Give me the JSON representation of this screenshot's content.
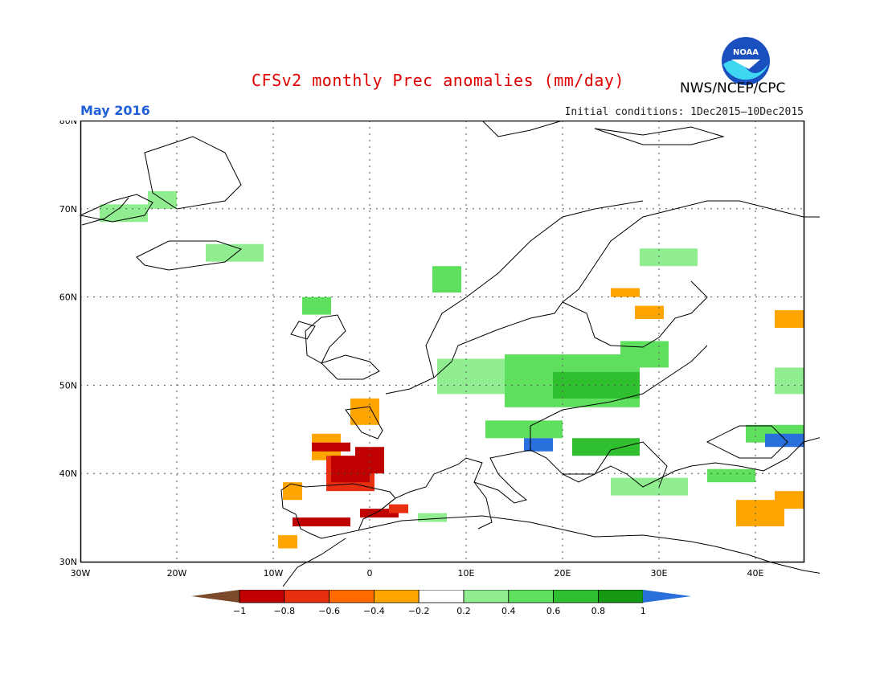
{
  "header": {
    "title": "CFSv2 monthly Prec anomalies (mm/day)",
    "month": "May 2016",
    "initial_conditions": "Initial conditions: 1Dec2015—10Dec2015",
    "agency": "NWS/NCEP/CPC",
    "logo_text": "NOAA"
  },
  "map": {
    "region": "Europe",
    "lon_range": [
      -30,
      45
    ],
    "lat_range": [
      30,
      80
    ],
    "lat_labels": [
      "80N",
      "70N",
      "60N",
      "50N",
      "40N",
      "30N"
    ],
    "lon_labels": [
      "30W",
      "20W",
      "10W",
      "0",
      "10E",
      "20E",
      "30E",
      "40E"
    ],
    "gridlines": true,
    "colors": {
      "lt_neg1": "#7a4a2a",
      "n08": "#c00000",
      "n06": "#e83010",
      "n04": "#ff6a00",
      "n02": "#ffa500",
      "p02": "#90ee90",
      "p04": "#5ee05e",
      "p06": "#2fbf2f",
      "p08": "#159915",
      "gt1": "#2a70dd"
    },
    "anomaly_cells": [
      {
        "lon": -28,
        "lat": 68.5,
        "w": 5,
        "h": 2,
        "c": "p02"
      },
      {
        "lon": -23,
        "lat": 70,
        "w": 3,
        "h": 2,
        "c": "p02"
      },
      {
        "lon": -17,
        "lat": 64,
        "w": 6,
        "h": 2,
        "c": "p02"
      },
      {
        "lon": -7,
        "lat": 58,
        "w": 3,
        "h": 2,
        "c": "p04"
      },
      {
        "lon": 6.5,
        "lat": 60.5,
        "w": 3,
        "h": 3,
        "c": "p04"
      },
      {
        "lon": 28,
        "lat": 63.5,
        "w": 6,
        "h": 2,
        "c": "p02"
      },
      {
        "lon": 25,
        "lat": 60,
        "w": 3,
        "h": 1,
        "c": "n02"
      },
      {
        "lon": 27.5,
        "lat": 57.5,
        "w": 3,
        "h": 1.5,
        "c": "n02"
      },
      {
        "lon": 7,
        "lat": 49,
        "w": 10,
        "h": 4,
        "c": "p02"
      },
      {
        "lon": 14,
        "lat": 47.5,
        "w": 14,
        "h": 6,
        "c": "p04"
      },
      {
        "lon": 19,
        "lat": 48.5,
        "w": 9,
        "h": 3,
        "c": "p06"
      },
      {
        "lon": 26,
        "lat": 52,
        "w": 5,
        "h": 3,
        "c": "p04"
      },
      {
        "lon": 12,
        "lat": 44,
        "w": 8,
        "h": 2,
        "c": "p04"
      },
      {
        "lon": 16,
        "lat": 42.5,
        "w": 3,
        "h": 1.5,
        "c": "gt1"
      },
      {
        "lon": 21,
        "lat": 42,
        "w": 7,
        "h": 2,
        "c": "p06"
      },
      {
        "lon": 25,
        "lat": 37.5,
        "w": 8,
        "h": 2,
        "c": "p02"
      },
      {
        "lon": 35,
        "lat": 39,
        "w": 5,
        "h": 1.5,
        "c": "p04"
      },
      {
        "lon": 39,
        "lat": 43.5,
        "w": 6,
        "h": 2,
        "c": "p04"
      },
      {
        "lon": 41,
        "lat": 43,
        "w": 4,
        "h": 1.5,
        "c": "gt1"
      },
      {
        "lon": 42,
        "lat": 49,
        "w": 3,
        "h": 3,
        "c": "p02"
      },
      {
        "lon": 42,
        "lat": 56.5,
        "w": 3,
        "h": 2,
        "c": "n02"
      },
      {
        "lon": -2,
        "lat": 45.5,
        "w": 3,
        "h": 3,
        "c": "n02"
      },
      {
        "lon": -6,
        "lat": 41.5,
        "w": 3,
        "h": 3,
        "c": "n02"
      },
      {
        "lon": -9,
        "lat": 37,
        "w": 2,
        "h": 2,
        "c": "n02"
      },
      {
        "lon": -4.5,
        "lat": 38,
        "w": 5,
        "h": 4,
        "c": "n06"
      },
      {
        "lon": -4,
        "lat": 39,
        "w": 4,
        "h": 3,
        "c": "n08"
      },
      {
        "lon": -1.5,
        "lat": 40,
        "w": 3,
        "h": 3,
        "c": "n08"
      },
      {
        "lon": -6,
        "lat": 42.5,
        "w": 4,
        "h": 1,
        "c": "n08"
      },
      {
        "lon": -8,
        "lat": 34,
        "w": 6,
        "h": 1,
        "c": "n08"
      },
      {
        "lon": -1,
        "lat": 35,
        "w": 4,
        "h": 1,
        "c": "n08"
      },
      {
        "lon": 2,
        "lat": 35.5,
        "w": 2,
        "h": 1,
        "c": "n06"
      },
      {
        "lon": -9.5,
        "lat": 31.5,
        "w": 2,
        "h": 1.5,
        "c": "n02"
      },
      {
        "lon": 38,
        "lat": 34,
        "w": 5,
        "h": 3,
        "c": "n02"
      },
      {
        "lon": 42,
        "lat": 36,
        "w": 3,
        "h": 2,
        "c": "n02"
      },
      {
        "lon": 5,
        "lat": 34.5,
        "w": 3,
        "h": 1,
        "c": "p02"
      }
    ]
  },
  "colorbar": {
    "ticks": [
      "−1",
      "−0.8",
      "−0.6",
      "−0.4",
      "−0.2",
      "0.2",
      "0.4",
      "0.6",
      "0.8",
      "1"
    ],
    "bins": [
      "#c00000",
      "#e83010",
      "#ff6a00",
      "#ffa500",
      "#ffffff",
      "#90ee90",
      "#5ee05e",
      "#2fbf2f",
      "#159915"
    ],
    "low_arrow": "#7a4a2a",
    "high_arrow": "#2a70dd"
  }
}
